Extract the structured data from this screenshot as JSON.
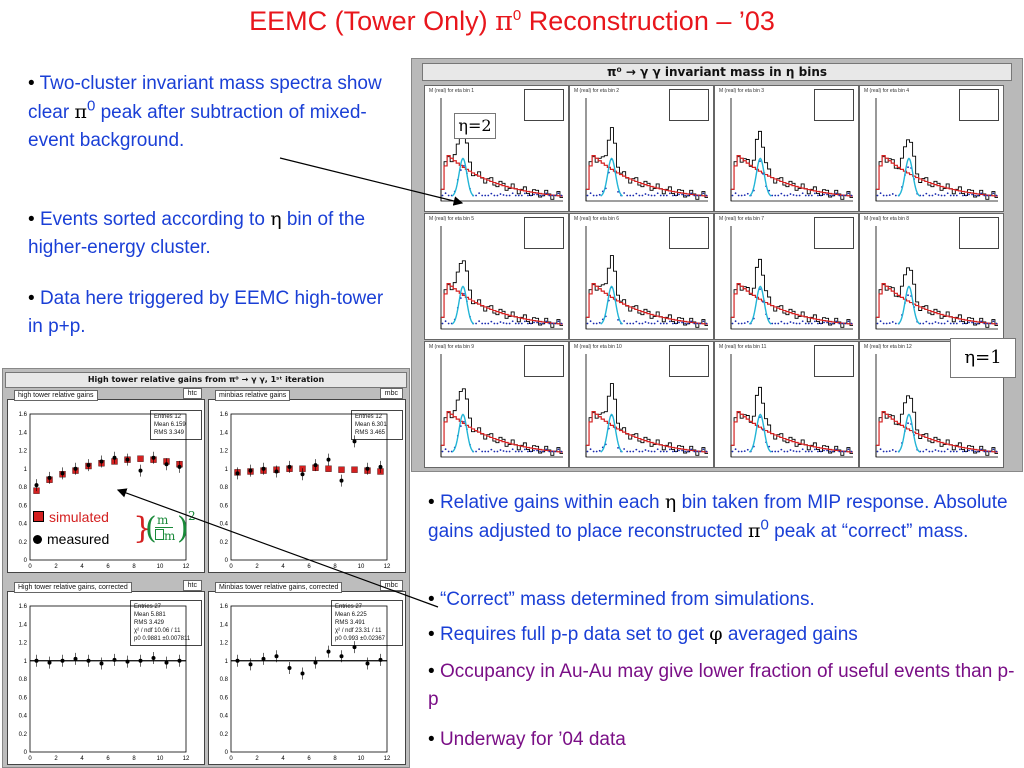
{
  "title": {
    "pre": "EEMC (Tower Only) ",
    "pi": "π",
    "sup": "0",
    "post": " Reconstruction – ’03"
  },
  "left_bullets": [
    {
      "a": "Two-cluster invariant mass spectra show clear ",
      "sym": "π",
      "sup": "0",
      "b": " peak after subtraction of mixed-event background."
    },
    {
      "a": "Events sorted according to ",
      "sym": "η",
      "b": " bin of the higher-energy cluster."
    },
    {
      "a": "Data here triggered by EEMC high-tower in p+p.",
      "sym": "",
      "b": ""
    }
  ],
  "right_bullets": [
    {
      "a": "Relative gains within each ",
      "sym": "η",
      "b": " bin taken from MIP response.  Absolute gains adjusted to place reconstructed ",
      "sym2": "π",
      "sup": "0",
      "c": " peak at “correct” mass.",
      "purple": false
    },
    {
      "a": "“Correct” mass determined from simulations.",
      "purple": false
    },
    {
      "a": "Requires full p-p data set to get ",
      "sym": "φ",
      "b": " averaged gains",
      "purple": false
    },
    {
      "a": "Occupancy in Au-Au may give lower fraction of useful events than p-p",
      "purple": true
    },
    {
      "a": "Underway for ’04 data",
      "purple": true
    }
  ],
  "mass_figure": {
    "banner": "π⁰ → γ γ invariant mass in η bins",
    "panel_titles": [
      "M  (real) for eta bin 1",
      "M  (real) for eta bin 2",
      "M  (real) for eta bin 3",
      "M  (real) for eta bin 4",
      "M  (real) for eta bin 5",
      "M  (real) for eta bin 6",
      "M  (real) for eta bin 7",
      "M  (real) for eta bin 8",
      "M  (real) for eta bin 9",
      "M  (real) for eta bin 10",
      "M  (real) for eta bin 11",
      "M  (real) for eta bin 12"
    ],
    "eta2_label": "η=2",
    "eta1_label": "η=1",
    "colors": {
      "total": "#000000",
      "mixed": "#d42020",
      "signal": "#1a2ab0",
      "fit": "#22b5d6"
    }
  },
  "gains_figure": {
    "banner": "High tower relative gains from  π⁰ → γ γ, 1ˢᵗ iteration",
    "top_left_title": "high tower relative gains",
    "top_left_box": "htc",
    "top_left_stats": [
      "Entries   12",
      "Mean   6.159",
      "RMS   3.349"
    ],
    "top_right_title": "minbias relative gains",
    "top_right_box": "mbc",
    "top_right_stats": [
      "Entries   12",
      "Mean   6.301",
      "RMS   3.465"
    ],
    "bot_left_title": "High tower relative gains, corrected",
    "bot_left_box": "htc",
    "bot_left_stats": [
      "Entries   27",
      "Mean   5.881",
      "RMS   3.429",
      "χ² / ndf   10.06 / 11",
      "p0   0.9881 ±0.007811"
    ],
    "bot_right_title": "Minbias tower relative gains, corrected",
    "bot_right_box": "mbc",
    "bot_right_stats": [
      "Entries   27",
      "Mean   6.225",
      "RMS   3.491",
      "χ² / ndf   23.31 / 11",
      "p0   0.993 ±0.02367"
    ],
    "legend_simulated": "simulated",
    "legend_measured": "measured",
    "formula_m": "m",
    "formula_dm": "m",
    "formula_exp": "2",
    "y_ticks": [
      "0",
      "0.2",
      "0.4",
      "0.6",
      "0.8",
      "1",
      "1.2",
      "1.4",
      "1.6"
    ],
    "x_ticks": [
      "0",
      "2",
      "4",
      "6",
      "8",
      "10",
      "12"
    ],
    "simulated_values": [
      0.76,
      0.88,
      0.94,
      0.98,
      1.03,
      1.06,
      1.08,
      1.1,
      1.11,
      1.1,
      1.08,
      1.05
    ],
    "measured_values": [
      0.82,
      0.9,
      0.95,
      1.0,
      1.04,
      1.08,
      1.12,
      1.1,
      0.98,
      1.12,
      1.05,
      1.02
    ],
    "mb_simulated": [
      0.96,
      0.97,
      0.98,
      0.99,
      1.0,
      1.0,
      1.01,
      1.0,
      0.99,
      0.99,
      0.98,
      0.97
    ],
    "mb_measured": [
      0.95,
      0.98,
      1.0,
      0.97,
      1.02,
      0.94,
      1.04,
      1.1,
      0.87,
      1.3,
      1.0,
      1.02
    ],
    "ht_corrected": [
      1.0,
      0.98,
      1.0,
      1.02,
      1.0,
      0.97,
      1.01,
      0.99,
      1.0,
      1.03,
      0.98,
      1.0
    ],
    "mb_corrected": [
      1.0,
      0.96,
      1.02,
      1.05,
      0.92,
      0.86,
      0.98,
      1.1,
      1.05,
      1.15,
      0.97,
      1.01
    ]
  }
}
